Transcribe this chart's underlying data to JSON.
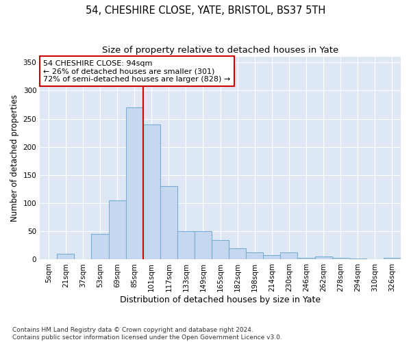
{
  "title": "54, CHESHIRE CLOSE, YATE, BRISTOL, BS37 5TH",
  "subtitle": "Size of property relative to detached houses in Yate",
  "xlabel": "Distribution of detached houses by size in Yate",
  "ylabel": "Number of detached properties",
  "footer": "Contains HM Land Registry data © Crown copyright and database right 2024.\nContains public sector information licensed under the Open Government Licence v3.0.",
  "bar_labels": [
    "5sqm",
    "21sqm",
    "37sqm",
    "53sqm",
    "69sqm",
    "85sqm",
    "101sqm",
    "117sqm",
    "133sqm",
    "149sqm",
    "165sqm",
    "182sqm",
    "198sqm",
    "214sqm",
    "230sqm",
    "246sqm",
    "262sqm",
    "278sqm",
    "294sqm",
    "310sqm",
    "326sqm"
  ],
  "bar_values": [
    0,
    10,
    0,
    46,
    105,
    270,
    240,
    130,
    50,
    50,
    35,
    20,
    13,
    8,
    13,
    3,
    5,
    3,
    2,
    0,
    3
  ],
  "bar_color": "#c5d8ef",
  "bar_edge_color": "#7aadd4",
  "bar_width": 1.0,
  "vline_x": 5.5,
  "property_line_label": "54 CHESHIRE CLOSE: 94sqm",
  "annotation_line1": "← 26% of detached houses are smaller (301)",
  "annotation_line2": "72% of semi-detached houses are larger (828) →",
  "annotation_box_color": "#ffffff",
  "annotation_box_edge": "#cc0000",
  "vline_color": "#cc0000",
  "ylim": [
    0,
    360
  ],
  "yticks": [
    0,
    50,
    100,
    150,
    200,
    250,
    300,
    350
  ],
  "plot_background": "#dde8f4",
  "title_fontsize": 10.5,
  "subtitle_fontsize": 9.5,
  "xlabel_fontsize": 9,
  "ylabel_fontsize": 8.5,
  "tick_fontsize": 7.5,
  "annot_fontsize": 8
}
